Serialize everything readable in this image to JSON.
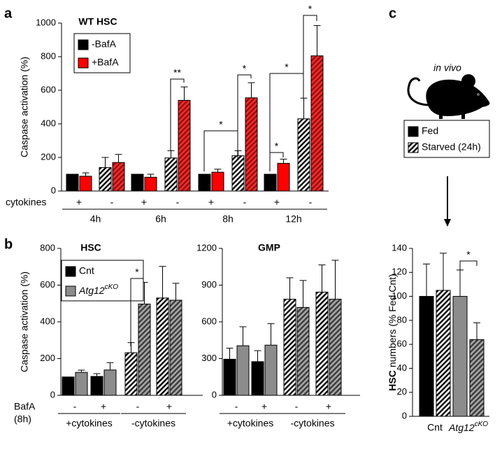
{
  "panel_labels": [
    "a",
    "b",
    "c"
  ],
  "in_vivo_label": "in vivo",
  "chart_data": [
    {
      "type": "bar",
      "title": "WT HSC",
      "ylabel": "Caspase activation (%)",
      "ylim": [
        0,
        1000
      ],
      "yticks": [
        0,
        200,
        400,
        600,
        800,
        1000
      ],
      "row_label": "cytokines",
      "categories": [
        "+",
        "-",
        "+",
        "-",
        "+",
        "-",
        "+",
        "-"
      ],
      "groups": [
        "4h",
        "6h",
        "8h",
        "12h"
      ],
      "hatched_categories": [
        false,
        true,
        false,
        true,
        false,
        true,
        false,
        true
      ],
      "series": [
        {
          "name": "-BafA",
          "color": "#000000",
          "hatch_colors": [
            "#000000",
            "#ffffff"
          ],
          "values": [
            100,
            140,
            100,
            197,
            100,
            210,
            100,
            430
          ],
          "errors": [
            null,
            60,
            null,
            43,
            null,
            30,
            null,
            123
          ]
        },
        {
          "name": "+BafA",
          "color": "#ff0000",
          "hatch_colors": [
            "#8a1010",
            "#ff2a2a"
          ],
          "values": [
            88,
            170,
            82,
            540,
            112,
            555,
            165,
            805
          ],
          "errors": [
            20,
            48,
            18,
            80,
            18,
            90,
            25,
            180
          ]
        }
      ],
      "annotations": [
        "**",
        "*",
        "*",
        "*",
        "*",
        "*"
      ]
    },
    {
      "type": "bar",
      "title": "HSC",
      "ylabel": "Caspase activation (%)",
      "ylim": [
        0,
        800
      ],
      "yticks": [
        0,
        200,
        400,
        600,
        800
      ],
      "row_label": "BafA",
      "row_label_note": "(8h)",
      "categories": [
        "-",
        "+",
        "-",
        "+"
      ],
      "groups": [
        "+cytokines",
        "-cytokines"
      ],
      "hatched_categories": [
        false,
        false,
        true,
        true
      ],
      "series": [
        {
          "name": "Cnt",
          "color": "#000000",
          "hatch_colors": [
            "#000000",
            "#ffffff"
          ],
          "values": [
            100,
            103,
            232,
            530
          ],
          "errors": [
            null,
            15,
            55,
            172
          ]
        },
        {
          "name": "Atg12",
          "superscript": "cKO",
          "color": "#8c8c8c",
          "hatch_colors": [
            "#3a3a3a",
            "#a8a8a8"
          ],
          "values": [
            125,
            138,
            497,
            518
          ],
          "errors": [
            12,
            40,
            118,
            92
          ]
        }
      ],
      "annotations": [
        "*"
      ]
    },
    {
      "type": "bar",
      "title": "GMP",
      "ylim": [
        0,
        1200
      ],
      "yticks": [
        0,
        300,
        600,
        900,
        1200
      ],
      "categories": [
        "-",
        "+",
        "-",
        "+"
      ],
      "groups": [
        "+cytokines",
        "-cytokines"
      ],
      "hatched_categories": [
        false,
        false,
        true,
        true
      ],
      "series": [
        {
          "color": "#000000",
          "hatch_colors": [
            "#000000",
            "#ffffff"
          ],
          "values": [
            295,
            275,
            785,
            843
          ],
          "errors": [
            90,
            90,
            175,
            222
          ]
        },
        {
          "color": "#8c8c8c",
          "hatch_colors": [
            "#3a3a3a",
            "#a8a8a8"
          ],
          "values": [
            405,
            410,
            718,
            785
          ],
          "errors": [
            155,
            175,
            220,
            318
          ]
        }
      ]
    },
    {
      "type": "bar",
      "ylabel_bold": "HSC",
      "ylabel": "numbers (% Fed Cnt)",
      "ylim": [
        0,
        140
      ],
      "yticks": [
        0,
        20,
        40,
        60,
        80,
        100,
        120,
        140
      ],
      "categories": [
        "Cnt",
        "Atg12"
      ],
      "category_superscripts": [
        null,
        "cKO"
      ],
      "category_colors": [
        "#000000",
        "#8c8c8c"
      ],
      "category_hatch_colors": [
        [
          "#000000",
          "#ffffff"
        ],
        [
          "#3a3a3a",
          "#a8a8a8"
        ]
      ],
      "series": [
        {
          "name": "Fed",
          "hatched": false,
          "values": [
            100,
            100
          ],
          "errors": [
            27,
            22
          ]
        },
        {
          "name": "Starved (24h)",
          "hatched": true,
          "values": [
            105,
            64
          ],
          "errors": [
            31,
            14
          ]
        }
      ],
      "annotations": [
        "*"
      ]
    }
  ]
}
